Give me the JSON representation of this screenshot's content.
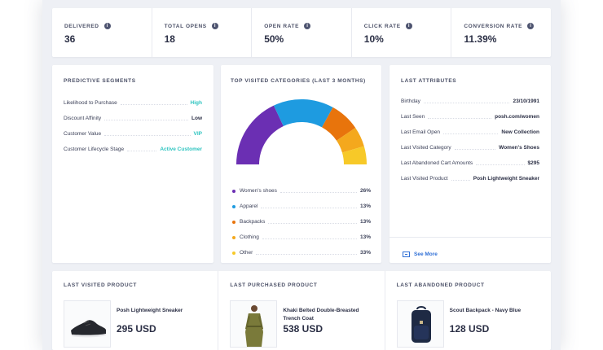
{
  "metrics": [
    {
      "label": "Delivered",
      "value": "36"
    },
    {
      "label": "Total opens",
      "value": "18"
    },
    {
      "label": "Open rate",
      "value": "50%"
    },
    {
      "label": "Click rate",
      "value": "10%"
    },
    {
      "label": "Conversion rate",
      "value": "11.39%"
    }
  ],
  "info_glyph": "i",
  "segments": {
    "title": "Predictive Segments",
    "rows": [
      {
        "key": "Likelihood to Purchase",
        "value": "High"
      },
      {
        "key": "Discount Affinity",
        "value": "Low"
      },
      {
        "key": "Customer Value",
        "value": "VIP"
      },
      {
        "key": "Customer Lifecycle Stage",
        "value": "Active Customer"
      }
    ]
  },
  "categories": {
    "title": "Top visited categories (last 3 months)",
    "items": [
      {
        "name": "Women's shoes",
        "pct": "26%",
        "color": "#6b2fb3"
      },
      {
        "name": "Apparel",
        "pct": "13%",
        "color": "#1e9be0"
      },
      {
        "name": "Backpacks",
        "pct": "13%",
        "color": "#e8740c"
      },
      {
        "name": "Clothing",
        "pct": "13%",
        "color": "#f4a81d"
      },
      {
        "name": "Other",
        "pct": "33%",
        "color": "#f7c928"
      }
    ]
  },
  "chart_data": {
    "type": "pie",
    "title": "Top visited categories (last 3 months)",
    "categories": [
      "Women's shoes",
      "Apparel",
      "Backpacks",
      "Clothing",
      "Other"
    ],
    "values": [
      26,
      13,
      13,
      13,
      33
    ],
    "arc_values": [
      36,
      30,
      15,
      10,
      9
    ]
  },
  "attributes": {
    "title": "Last Attributes",
    "rows": [
      {
        "key": "Birthday",
        "value": "23/10/1991"
      },
      {
        "key": "Last Seen",
        "value": "posh.com/women"
      },
      {
        "key": "Last Email Open",
        "value": "New Collection"
      },
      {
        "key": "Last Visited Category",
        "value": "Women's Shoes"
      },
      {
        "key": "Last Abandoned Cart Amounts",
        "value": "$295"
      },
      {
        "key": "Last Visited Product",
        "value": "Posh Lightweight Sneaker"
      }
    ],
    "see_more": "See More"
  },
  "products": [
    {
      "section": "Last visited product",
      "name": "Posh Lightweight Sneaker",
      "price": "295 USD",
      "icon": "sneaker-image"
    },
    {
      "section": "Last purchased product",
      "name": "Khaki Belted Double-Breasted Trench Coat",
      "price": "538 USD",
      "icon": "trench-coat-image"
    },
    {
      "section": "Last abandoned product",
      "name": "Scout Backpack - Navy Blue",
      "price": "128 USD",
      "icon": "backpack-image"
    }
  ]
}
